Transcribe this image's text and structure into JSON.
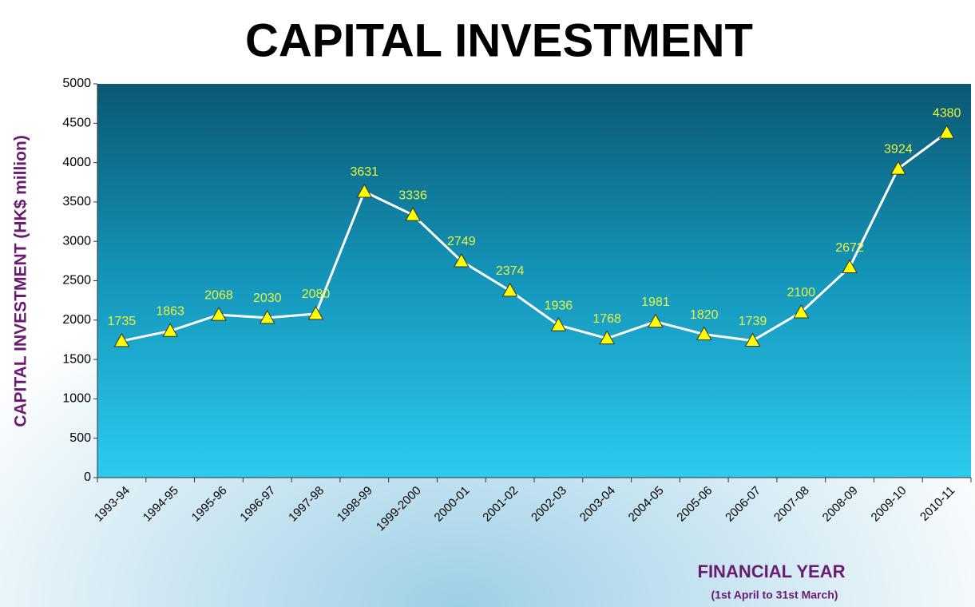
{
  "chart_data": {
    "type": "line",
    "title": "CAPITAL INVESTMENT",
    "y_label": "CAPITAL INVESTMENT (HK$ million)",
    "x_label": "FINANCIAL YEAR",
    "x_note": "(1st April to 31st March)",
    "categories": [
      "1993-94",
      "1994-95",
      "1995-96",
      "1996-97",
      "1997-98",
      "1998-99",
      "1999-2000",
      "2000-01",
      "2001-02",
      "2002-03",
      "2003-04",
      "2004-05",
      "2005-06",
      "2006-07",
      "2007-08",
      "2008-09",
      "2009-10",
      "2010-11"
    ],
    "values": [
      1735,
      1863,
      2068,
      2030,
      2080,
      3631,
      3336,
      2749,
      2374,
      1936,
      1768,
      1981,
      1820,
      1739,
      2100,
      2672,
      3924,
      4380
    ],
    "color": "#ffffff",
    "marker_color": "#ffff00",
    "label_color": "#e8f53c",
    "ylim": [
      0,
      5000
    ],
    "yticks": [
      0,
      500,
      1000,
      1500,
      2000,
      2500,
      3000,
      3500,
      4000,
      4500,
      5000
    ]
  }
}
